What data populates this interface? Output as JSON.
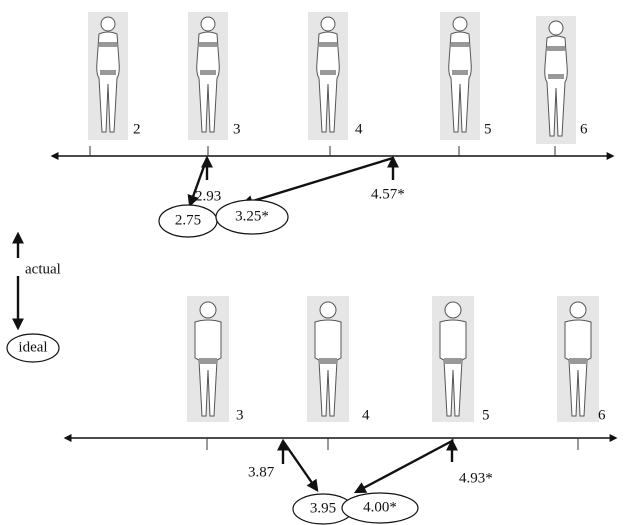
{
  "female": {
    "scale_labels": [
      "2",
      "3",
      "4",
      "5",
      "6"
    ],
    "actual": [
      "2.93",
      "4.57*"
    ],
    "ideal": [
      "2.75",
      "3.25*"
    ]
  },
  "legend": {
    "actual": "actual",
    "ideal": "ideal"
  },
  "male": {
    "scale_labels": [
      "3",
      "4",
      "5",
      "6"
    ],
    "actual": [
      "3.87",
      "4.93*"
    ],
    "ideal": [
      "3.95",
      "4.00*"
    ]
  }
}
